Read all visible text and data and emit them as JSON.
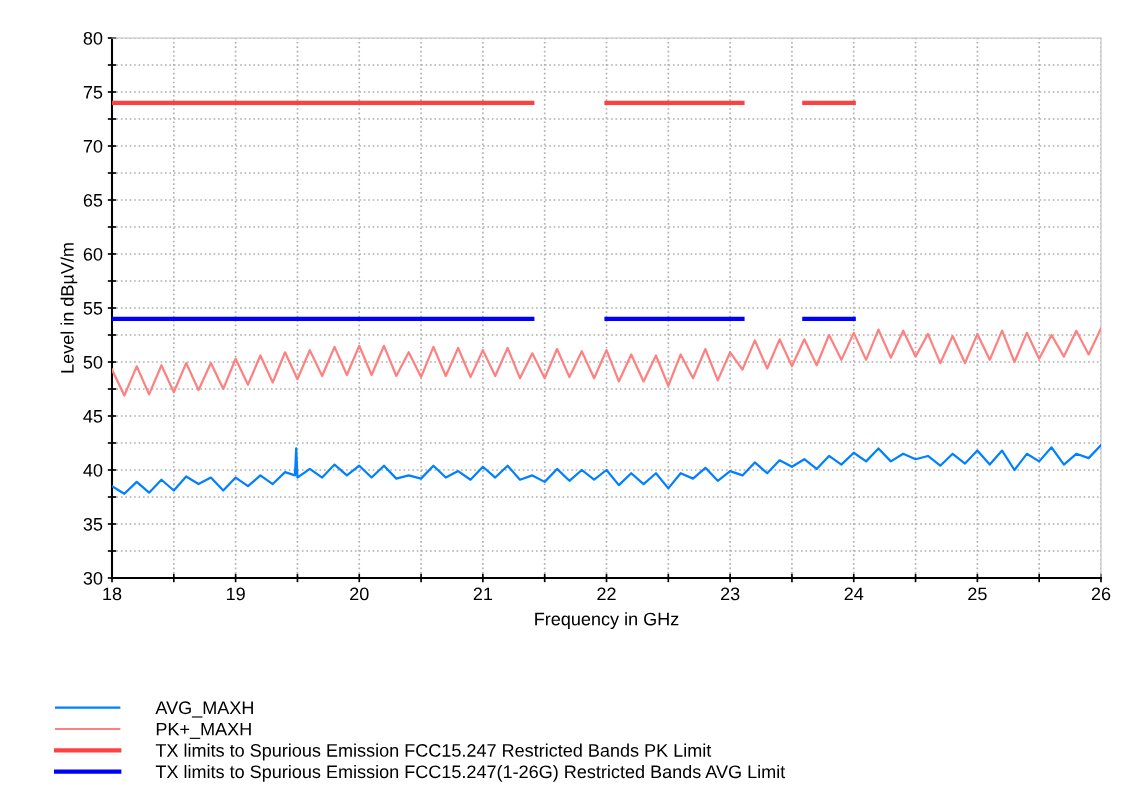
{
  "chart_data": {
    "type": "line",
    "xlabel": "Frequency in GHz",
    "ylabel": "Level in dBµV/m",
    "xlim": [
      18,
      26
    ],
    "ylim": [
      30,
      80
    ],
    "xticks": [
      18,
      {
        "value": 18.5,
        "label": null
      },
      19,
      {
        "value": 19.5,
        "label": null
      },
      20,
      {
        "value": 20.5,
        "label": null
      },
      21,
      {
        "value": 21.5,
        "label": null
      },
      22,
      {
        "value": 22.5,
        "label": null
      },
      23,
      {
        "value": 23.5,
        "label": null
      },
      24,
      {
        "value": 24.5,
        "label": null
      },
      25,
      {
        "value": 25.5,
        "label": null
      },
      26
    ],
    "yticks": [
      30,
      {
        "value": 32.5,
        "label": null
      },
      35,
      {
        "value": 37.5,
        "label": null
      },
      40,
      {
        "value": 42.5,
        "label": null
      },
      45,
      {
        "value": 47.5,
        "label": null
      },
      50,
      {
        "value": 52.5,
        "label": null
      },
      55,
      {
        "value": 57.5,
        "label": null
      },
      60,
      {
        "value": 62.5,
        "label": null
      },
      65,
      {
        "value": 67.5,
        "label": null
      },
      70,
      {
        "value": 72.5,
        "label": null
      },
      75,
      {
        "value": 77.5,
        "label": null
      },
      80
    ],
    "grid": true,
    "legend": "bottom",
    "line_style": "solid",
    "marker": "none",
    "series": [
      {
        "name": "AVG_MAXH",
        "color": "#0080ff",
        "x": [
          18.0,
          18.1,
          18.2,
          18.3,
          18.4,
          18.5,
          18.6,
          18.7,
          18.8,
          18.9,
          19.0,
          19.1,
          19.2,
          19.3,
          19.4,
          19.48,
          19.49,
          19.5,
          19.6,
          19.7,
          19.8,
          19.9,
          20.0,
          20.1,
          20.2,
          20.3,
          20.4,
          20.5,
          20.6,
          20.7,
          20.8,
          20.9,
          21.0,
          21.1,
          21.2,
          21.3,
          21.4,
          21.5,
          21.6,
          21.7,
          21.8,
          21.9,
          22.0,
          22.1,
          22.2,
          22.3,
          22.4,
          22.5,
          22.6,
          22.7,
          22.8,
          22.9,
          23.0,
          23.1,
          23.2,
          23.3,
          23.4,
          23.5,
          23.6,
          23.7,
          23.8,
          23.9,
          24.0,
          24.1,
          24.2,
          24.3,
          24.4,
          24.5,
          24.6,
          24.7,
          24.8,
          24.9,
          25.0,
          25.1,
          25.2,
          25.3,
          25.4,
          25.5,
          25.6,
          25.7,
          25.8,
          25.9,
          26.0
        ],
        "values": [
          38.5,
          37.8,
          38.9,
          37.9,
          39.1,
          38.1,
          39.4,
          38.7,
          39.3,
          38.1,
          39.3,
          38.5,
          39.5,
          38.7,
          39.8,
          39.5,
          42.0,
          39.3,
          40.1,
          39.3,
          40.5,
          39.5,
          40.4,
          39.3,
          40.4,
          39.2,
          39.5,
          39.2,
          40.4,
          39.3,
          39.9,
          39.1,
          40.3,
          39.3,
          40.4,
          39.1,
          39.5,
          38.9,
          40.1,
          39.0,
          40.0,
          39.1,
          40.0,
          38.6,
          39.7,
          38.7,
          39.7,
          38.3,
          39.7,
          39.2,
          40.2,
          39.0,
          39.9,
          39.5,
          40.7,
          39.7,
          40.9,
          40.3,
          41.0,
          40.1,
          41.3,
          40.5,
          41.6,
          40.8,
          42.0,
          40.8,
          41.5,
          41.0,
          41.3,
          40.4,
          41.5,
          40.6,
          41.8,
          40.5,
          41.8,
          40.0,
          41.5,
          40.8,
          42.1,
          40.5,
          41.5,
          41.1,
          42.3
        ]
      },
      {
        "name": "PK+_MAXH",
        "color": "#ff8080",
        "x": [
          18.0,
          18.1,
          18.2,
          18.3,
          18.4,
          18.5,
          18.6,
          18.7,
          18.8,
          18.9,
          19.0,
          19.1,
          19.2,
          19.3,
          19.4,
          19.5,
          19.6,
          19.7,
          19.8,
          19.9,
          20.0,
          20.1,
          20.2,
          20.3,
          20.4,
          20.5,
          20.6,
          20.7,
          20.8,
          20.9,
          21.0,
          21.1,
          21.2,
          21.3,
          21.4,
          21.5,
          21.6,
          21.7,
          21.8,
          21.9,
          22.0,
          22.1,
          22.2,
          22.3,
          22.4,
          22.5,
          22.6,
          22.7,
          22.8,
          22.9,
          23.0,
          23.1,
          23.2,
          23.3,
          23.4,
          23.5,
          23.6,
          23.7,
          23.8,
          23.9,
          24.0,
          24.1,
          24.2,
          24.3,
          24.4,
          24.5,
          24.6,
          24.7,
          24.8,
          24.9,
          25.0,
          25.1,
          25.2,
          25.3,
          25.4,
          25.5,
          25.6,
          25.7,
          25.8,
          25.9,
          26.0
        ],
        "values": [
          49.3,
          46.9,
          49.6,
          47.0,
          49.7,
          47.2,
          49.9,
          47.4,
          49.9,
          47.5,
          50.3,
          47.9,
          50.6,
          48.1,
          50.9,
          48.4,
          51.1,
          48.7,
          51.4,
          48.8,
          51.5,
          48.8,
          51.5,
          48.7,
          50.9,
          48.6,
          51.4,
          48.7,
          51.3,
          48.6,
          51.1,
          48.7,
          51.3,
          48.5,
          50.8,
          48.5,
          51.2,
          48.6,
          51.0,
          48.5,
          51.1,
          48.2,
          50.7,
          48.2,
          50.6,
          47.8,
          50.7,
          48.5,
          51.2,
          48.3,
          50.9,
          49.3,
          52.0,
          49.4,
          52.1,
          49.6,
          52.1,
          49.7,
          52.5,
          50.2,
          52.7,
          50.2,
          53.0,
          50.4,
          52.9,
          50.5,
          52.6,
          49.9,
          52.4,
          49.9,
          52.6,
          50.2,
          52.9,
          50.0,
          52.7,
          50.3,
          52.5,
          50.5,
          52.9,
          50.7,
          53.1
        ]
      },
      {
        "name": "TX limits to Spurious Emission FCC15.247 Restricted Bands PK Limit",
        "color": "#ff4040",
        "x": [
          18,
          21.4,
          21.7,
          22,
          23.1,
          23.35,
          23.6,
          24
        ],
        "values": [
          74,
          74,
          null,
          74,
          74,
          null,
          74,
          74
        ]
      },
      {
        "name": "TX limits to Spurious Emission FCC15.247(1-26G) Restricted Bands AVG Limit",
        "color": "#0000ff",
        "x": [
          18,
          21.4,
          21.7,
          22,
          23.1,
          23.35,
          23.6,
          24
        ],
        "values": [
          54,
          54,
          null,
          54,
          54,
          null,
          54,
          54
        ]
      }
    ]
  }
}
